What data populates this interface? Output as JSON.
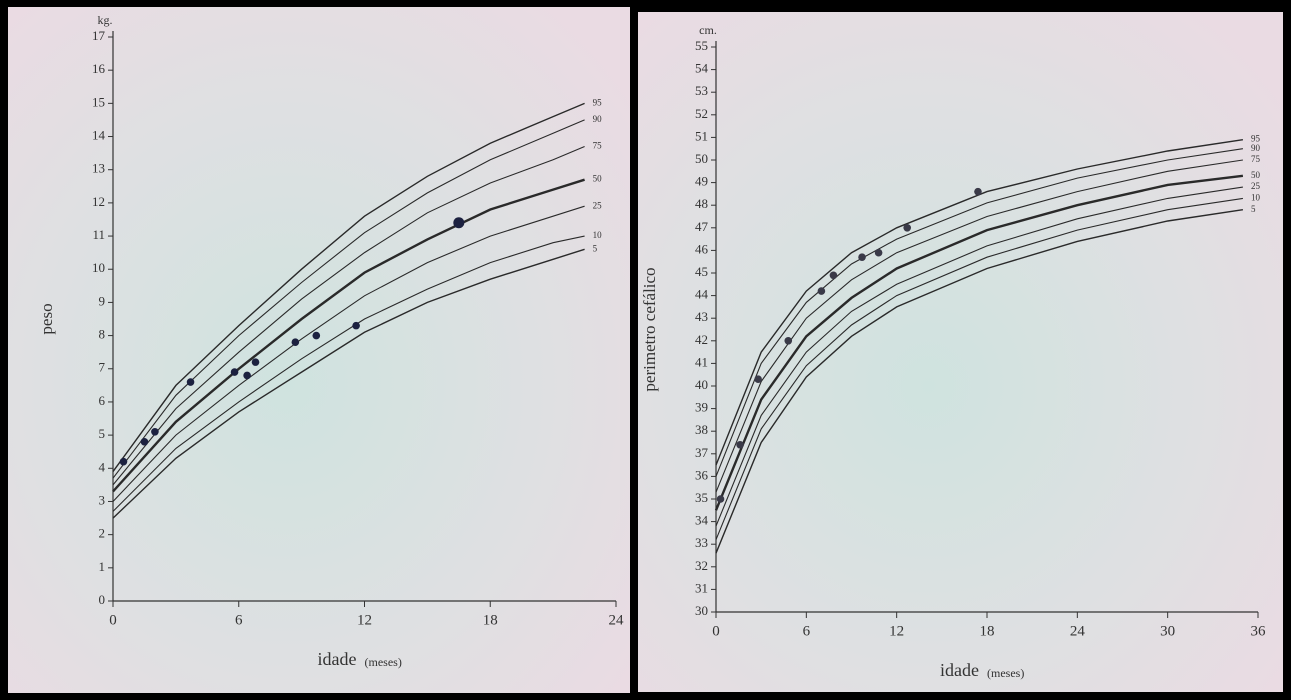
{
  "chart_data": [
    {
      "type": "line",
      "unit_label": "kg.",
      "ylabel": "peso",
      "xlabel": "idade",
      "xlabel_note": "(meses)",
      "xlim": [
        0,
        24
      ],
      "ylim": [
        0,
        17
      ],
      "xticks": [
        0,
        6,
        12,
        18,
        24
      ],
      "yticks": [
        0,
        1,
        2,
        3,
        4,
        5,
        6,
        7,
        8,
        9,
        10,
        11,
        12,
        13,
        14,
        15,
        16,
        17
      ],
      "grid": false,
      "color": "#2a2a2a",
      "x": [
        0,
        3,
        6,
        9,
        12,
        15,
        18,
        21,
        22.5
      ],
      "series": [
        {
          "name": "95",
          "width": 1.4,
          "values": [
            3.9,
            6.5,
            8.3,
            10.0,
            11.6,
            12.8,
            13.8,
            14.6,
            15.0
          ]
        },
        {
          "name": "90",
          "width": 1.1,
          "values": [
            3.7,
            6.2,
            8.0,
            9.6,
            11.1,
            12.3,
            13.3,
            14.1,
            14.5
          ]
        },
        {
          "name": "75",
          "width": 1.1,
          "values": [
            3.5,
            5.8,
            7.5,
            9.1,
            10.5,
            11.7,
            12.6,
            13.3,
            13.7
          ]
        },
        {
          "name": "50",
          "width": 2.4,
          "values": [
            3.3,
            5.4,
            7.0,
            8.5,
            9.9,
            10.9,
            11.8,
            12.4,
            12.7
          ]
        },
        {
          "name": "25",
          "width": 1.1,
          "values": [
            3.0,
            5.0,
            6.5,
            7.9,
            9.2,
            10.2,
            11.0,
            11.6,
            11.9
          ]
        },
        {
          "name": "10",
          "width": 1.1,
          "values": [
            2.7,
            4.6,
            6.0,
            7.3,
            8.5,
            9.4,
            10.2,
            10.8,
            11.0
          ]
        },
        {
          "name": "5",
          "width": 1.4,
          "values": [
            2.5,
            4.3,
            5.7,
            6.9,
            8.1,
            9.0,
            9.7,
            10.3,
            10.6
          ]
        }
      ],
      "measurements": {
        "color": "#1c2140",
        "x": [
          0.5,
          1.5,
          2,
          3.7,
          5.8,
          6.4,
          6.8,
          8.7,
          9.7,
          11.6,
          16.5
        ],
        "values": [
          4.2,
          4.8,
          5.1,
          6.6,
          6.9,
          6.8,
          7.2,
          7.8,
          8.0,
          8.3,
          11.4
        ]
      }
    },
    {
      "type": "line",
      "unit_label": "cm.",
      "ylabel": "perimetro cefálico",
      "xlabel": "idade",
      "xlabel_note": "(meses)",
      "xlim": [
        0,
        36
      ],
      "ylim": [
        30,
        55
      ],
      "xticks": [
        0,
        6,
        12,
        18,
        24,
        30,
        36
      ],
      "yticks": [
        30,
        31,
        32,
        33,
        34,
        35,
        36,
        37,
        38,
        39,
        40,
        41,
        42,
        43,
        44,
        45,
        46,
        47,
        48,
        49,
        50,
        51,
        52,
        53,
        54,
        55
      ],
      "grid": false,
      "color": "#2a2a2a",
      "x": [
        0,
        3,
        6,
        9,
        12,
        18,
        24,
        30,
        35
      ],
      "series": [
        {
          "name": "95",
          "width": 1.4,
          "values": [
            36.5,
            41.5,
            44.2,
            45.9,
            47.0,
            48.6,
            49.6,
            50.4,
            50.9
          ]
        },
        {
          "name": "90",
          "width": 1.1,
          "values": [
            36.0,
            41.0,
            43.7,
            45.4,
            46.5,
            48.1,
            49.2,
            50.0,
            50.5
          ]
        },
        {
          "name": "75",
          "width": 1.1,
          "values": [
            35.3,
            40.2,
            43.0,
            44.7,
            45.9,
            47.5,
            48.6,
            49.5,
            50.0
          ]
        },
        {
          "name": "50",
          "width": 2.4,
          "values": [
            34.5,
            39.4,
            42.2,
            43.9,
            45.2,
            46.9,
            48.0,
            48.9,
            49.3
          ]
        },
        {
          "name": "25",
          "width": 1.1,
          "values": [
            33.8,
            38.7,
            41.5,
            43.3,
            44.5,
            46.2,
            47.4,
            48.3,
            48.8
          ]
        },
        {
          "name": "10",
          "width": 1.1,
          "values": [
            33.2,
            38.1,
            40.9,
            42.7,
            44.0,
            45.7,
            46.9,
            47.8,
            48.3
          ]
        },
        {
          "name": "5",
          "width": 1.4,
          "values": [
            32.6,
            37.5,
            40.4,
            42.2,
            43.5,
            45.2,
            46.4,
            47.3,
            47.8
          ]
        }
      ],
      "measurements": {
        "color": "#3a3a48",
        "x": [
          0.3,
          1.6,
          2.8,
          4.8,
          7,
          7.8,
          9.7,
          10.8,
          12.7,
          17.4
        ],
        "values": [
          35.0,
          37.4,
          40.3,
          42.0,
          44.2,
          44.9,
          45.7,
          45.9,
          47.0,
          48.6
        ]
      }
    }
  ]
}
